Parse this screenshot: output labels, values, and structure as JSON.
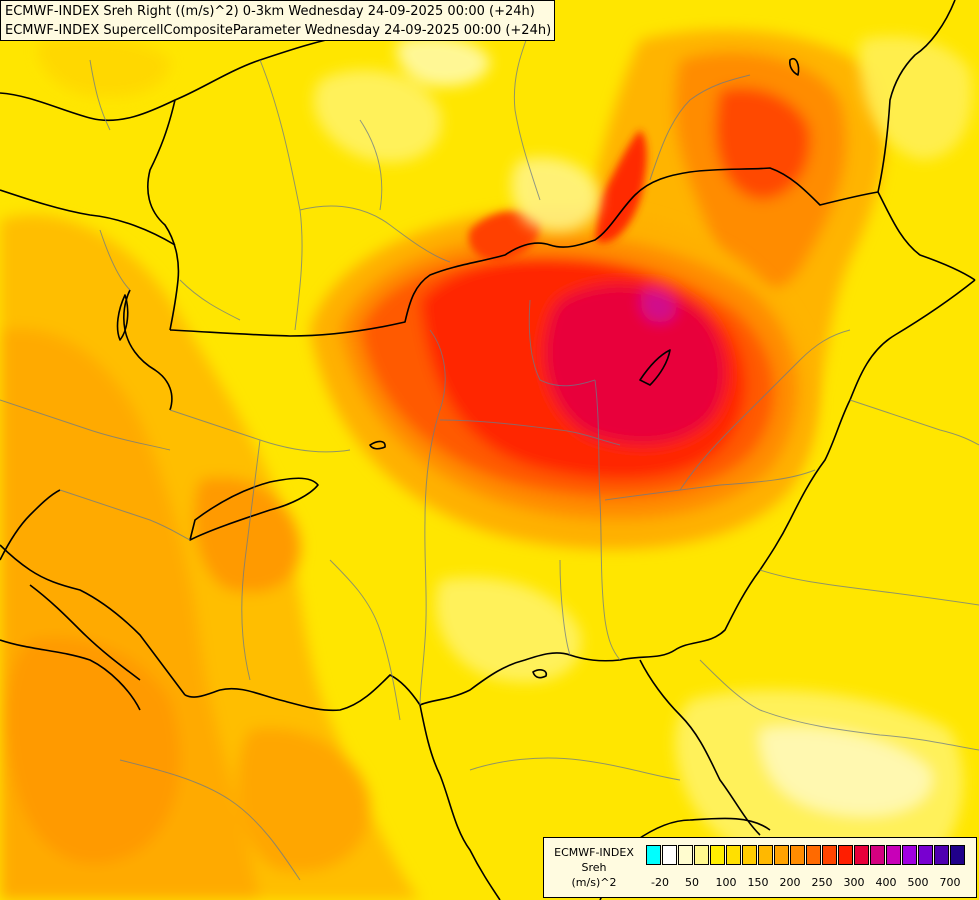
{
  "titles": {
    "line1": "ECMWF-INDEX Sreh Right ((m/s)^2) 0-3km Wednesday 24-09-2025 00:00 (+24h)",
    "line2": "ECMWF-INDEX SupercellCompositeParameter Wednesday 24-09-2025 00:00 (+24h)"
  },
  "legend": {
    "line1": "ECMWF-INDEX",
    "line2": "Sreh",
    "line3": "(m/s)^2",
    "colors": [
      "#00ffff",
      "#ffffff",
      "#fffccf",
      "#fff88e",
      "#ffee00",
      "#ffe000",
      "#ffcc00",
      "#ffb800",
      "#ffa200",
      "#ff8c00",
      "#ff6a00",
      "#ff4500",
      "#ff1e00",
      "#e8003a",
      "#d40080",
      "#c800b8",
      "#a000e0",
      "#7800d0",
      "#5000b0",
      "#20008a"
    ],
    "labels": [
      "-20",
      "50",
      "100",
      "150",
      "200",
      "250",
      "300",
      "400",
      "500",
      "700"
    ]
  },
  "icons": {
    "map": "weather-map-icon"
  }
}
